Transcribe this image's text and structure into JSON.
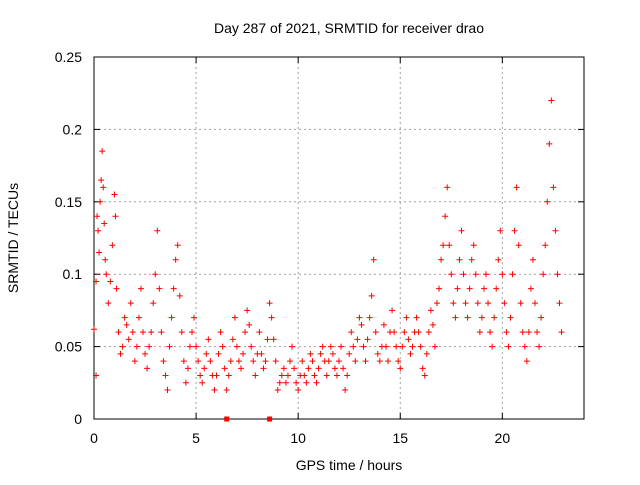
{
  "chart_data": {
    "type": "scatter",
    "title": "Day 287 of 2021, SRMTID for receiver drao",
    "xlabel": "GPS time / hours",
    "ylabel": "SRMTID / TECUs",
    "xlim": [
      0,
      24
    ],
    "ylim": [
      0,
      0.25
    ],
    "grid": true,
    "marker": "+",
    "color": "#ff0000",
    "x_ticks": [
      0,
      5,
      10,
      15,
      20
    ],
    "x_tick_labels": [
      "0",
      "5",
      "10",
      "15",
      "20"
    ],
    "y_ticks": [
      0,
      0.05,
      0.1,
      0.15,
      0.2,
      0.25
    ],
    "y_tick_labels": [
      "0",
      "0.05",
      "0.1",
      "0.15",
      "0.2",
      "0.25"
    ],
    "series": [
      {
        "name": "SRMTID",
        "points": [
          [
            0.0,
            0.062
          ],
          [
            0.1,
            0.03
          ],
          [
            0.1,
            0.095
          ],
          [
            0.15,
            0.14
          ],
          [
            0.2,
            0.13
          ],
          [
            0.25,
            0.115
          ],
          [
            0.3,
            0.15
          ],
          [
            0.35,
            0.165
          ],
          [
            0.4,
            0.185
          ],
          [
            0.45,
            0.16
          ],
          [
            0.5,
            0.135
          ],
          [
            0.55,
            0.11
          ],
          [
            0.6,
            0.1
          ],
          [
            0.7,
            0.08
          ],
          [
            0.8,
            0.095
          ],
          [
            0.9,
            0.12
          ],
          [
            1.0,
            0.155
          ],
          [
            1.05,
            0.14
          ],
          [
            1.1,
            0.09
          ],
          [
            1.2,
            0.06
          ],
          [
            1.3,
            0.045
          ],
          [
            1.4,
            0.05
          ],
          [
            1.5,
            0.07
          ],
          [
            1.6,
            0.065
          ],
          [
            1.7,
            0.055
          ],
          [
            1.8,
            0.08
          ],
          [
            1.9,
            0.06
          ],
          [
            2.0,
            0.04
          ],
          [
            2.1,
            0.05
          ],
          [
            2.2,
            0.07
          ],
          [
            2.3,
            0.09
          ],
          [
            2.4,
            0.06
          ],
          [
            2.5,
            0.045
          ],
          [
            2.6,
            0.035
          ],
          [
            2.7,
            0.05
          ],
          [
            2.8,
            0.06
          ],
          [
            2.9,
            0.08
          ],
          [
            3.0,
            0.1
          ],
          [
            3.1,
            0.13
          ],
          [
            3.2,
            0.09
          ],
          [
            3.3,
            0.06
          ],
          [
            3.4,
            0.04
          ],
          [
            3.5,
            0.03
          ],
          [
            3.6,
            0.02
          ],
          [
            3.7,
            0.05
          ],
          [
            3.8,
            0.07
          ],
          [
            3.9,
            0.09
          ],
          [
            4.0,
            0.11
          ],
          [
            4.1,
            0.12
          ],
          [
            4.2,
            0.085
          ],
          [
            4.3,
            0.06
          ],
          [
            4.4,
            0.04
          ],
          [
            4.5,
            0.025
          ],
          [
            4.6,
            0.035
          ],
          [
            4.7,
            0.05
          ],
          [
            4.8,
            0.06
          ],
          [
            4.9,
            0.07
          ],
          [
            5.0,
            0.05
          ],
          [
            5.1,
            0.04
          ],
          [
            5.2,
            0.03
          ],
          [
            5.3,
            0.025
          ],
          [
            5.4,
            0.035
          ],
          [
            5.5,
            0.045
          ],
          [
            5.6,
            0.055
          ],
          [
            5.7,
            0.04
          ],
          [
            5.8,
            0.03
          ],
          [
            5.9,
            0.02
          ],
          [
            6.0,
            0.03
          ],
          [
            6.1,
            0.045
          ],
          [
            6.2,
            0.06
          ],
          [
            6.3,
            0.05
          ],
          [
            6.4,
            0.035
          ],
          [
            6.5,
            0.02
          ],
          [
            6.6,
            0.03
          ],
          [
            6.7,
            0.04
          ],
          [
            6.8,
            0.055
          ],
          [
            6.9,
            0.07
          ],
          [
            7.0,
            0.05
          ],
          [
            7.1,
            0.04
          ],
          [
            7.2,
            0.035
          ],
          [
            7.3,
            0.045
          ],
          [
            7.4,
            0.06
          ],
          [
            7.5,
            0.075
          ],
          [
            7.6,
            0.065
          ],
          [
            7.7,
            0.05
          ],
          [
            7.8,
            0.04
          ],
          [
            7.9,
            0.03
          ],
          [
            8.0,
            0.045
          ],
          [
            8.1,
            0.06
          ],
          [
            8.2,
            0.045
          ],
          [
            8.3,
            0.035
          ],
          [
            8.4,
            0.04
          ],
          [
            8.5,
            0.055
          ],
          [
            8.6,
            0.08
          ],
          [
            8.7,
            0.07
          ],
          [
            8.8,
            0.055
          ],
          [
            8.9,
            0.04
          ],
          [
            9.0,
            0.02
          ],
          [
            9.1,
            0.025
          ],
          [
            9.2,
            0.03
          ],
          [
            9.3,
            0.035
          ],
          [
            9.4,
            0.025
          ],
          [
            9.5,
            0.03
          ],
          [
            9.6,
            0.04
          ],
          [
            9.7,
            0.05
          ],
          [
            9.8,
            0.035
          ],
          [
            9.9,
            0.025
          ],
          [
            10.0,
            0.02
          ],
          [
            10.1,
            0.03
          ],
          [
            10.2,
            0.04
          ],
          [
            10.3,
            0.03
          ],
          [
            10.4,
            0.025
          ],
          [
            10.5,
            0.035
          ],
          [
            10.6,
            0.045
          ],
          [
            10.7,
            0.04
          ],
          [
            10.8,
            0.03
          ],
          [
            10.9,
            0.025
          ],
          [
            11.0,
            0.035
          ],
          [
            11.1,
            0.045
          ],
          [
            11.2,
            0.05
          ],
          [
            11.3,
            0.04
          ],
          [
            11.4,
            0.03
          ],
          [
            11.5,
            0.04
          ],
          [
            11.6,
            0.05
          ],
          [
            11.7,
            0.045
          ],
          [
            11.8,
            0.035
          ],
          [
            11.9,
            0.03
          ],
          [
            12.0,
            0.04
          ],
          [
            12.1,
            0.05
          ],
          [
            12.2,
            0.035
          ],
          [
            12.3,
            0.02
          ],
          [
            12.4,
            0.03
          ],
          [
            12.5,
            0.045
          ],
          [
            12.6,
            0.06
          ],
          [
            12.7,
            0.05
          ],
          [
            12.8,
            0.04
          ],
          [
            12.9,
            0.055
          ],
          [
            13.0,
            0.07
          ],
          [
            13.1,
            0.065
          ],
          [
            13.2,
            0.05
          ],
          [
            13.3,
            0.04
          ],
          [
            13.4,
            0.055
          ],
          [
            13.5,
            0.07
          ],
          [
            13.6,
            0.085
          ],
          [
            13.7,
            0.11
          ],
          [
            13.8,
            0.06
          ],
          [
            13.9,
            0.045
          ],
          [
            14.0,
            0.04
          ],
          [
            14.1,
            0.05
          ],
          [
            14.2,
            0.065
          ],
          [
            14.3,
            0.05
          ],
          [
            14.4,
            0.04
          ],
          [
            14.5,
            0.06
          ],
          [
            14.6,
            0.075
          ],
          [
            14.7,
            0.06
          ],
          [
            14.8,
            0.05
          ],
          [
            14.9,
            0.04
          ],
          [
            15.0,
            0.035
          ],
          [
            15.1,
            0.05
          ],
          [
            15.2,
            0.06
          ],
          [
            15.3,
            0.07
          ],
          [
            15.4,
            0.055
          ],
          [
            15.5,
            0.045
          ],
          [
            15.6,
            0.05
          ],
          [
            15.7,
            0.06
          ],
          [
            15.8,
            0.07
          ],
          [
            15.9,
            0.06
          ],
          [
            16.0,
            0.05
          ],
          [
            16.1,
            0.035
          ],
          [
            16.2,
            0.03
          ],
          [
            16.3,
            0.045
          ],
          [
            16.4,
            0.06
          ],
          [
            16.5,
            0.075
          ],
          [
            16.6,
            0.065
          ],
          [
            16.7,
            0.05
          ],
          [
            16.8,
            0.08
          ],
          [
            16.9,
            0.09
          ],
          [
            17.0,
            0.11
          ],
          [
            17.1,
            0.12
          ],
          [
            17.2,
            0.14
          ],
          [
            17.3,
            0.16
          ],
          [
            17.4,
            0.12
          ],
          [
            17.5,
            0.1
          ],
          [
            17.6,
            0.08
          ],
          [
            17.7,
            0.07
          ],
          [
            17.8,
            0.09
          ],
          [
            17.9,
            0.11
          ],
          [
            18.0,
            0.13
          ],
          [
            18.1,
            0.1
          ],
          [
            18.2,
            0.08
          ],
          [
            18.3,
            0.07
          ],
          [
            18.4,
            0.09
          ],
          [
            18.5,
            0.11
          ],
          [
            18.6,
            0.12
          ],
          [
            18.7,
            0.1
          ],
          [
            18.8,
            0.08
          ],
          [
            18.9,
            0.06
          ],
          [
            19.0,
            0.07
          ],
          [
            19.1,
            0.09
          ],
          [
            19.2,
            0.1
          ],
          [
            19.3,
            0.08
          ],
          [
            19.4,
            0.06
          ],
          [
            19.5,
            0.05
          ],
          [
            19.6,
            0.07
          ],
          [
            19.7,
            0.09
          ],
          [
            19.8,
            0.11
          ],
          [
            19.9,
            0.13
          ],
          [
            20.0,
            0.1
          ],
          [
            20.1,
            0.08
          ],
          [
            20.2,
            0.06
          ],
          [
            20.3,
            0.05
          ],
          [
            20.4,
            0.07
          ],
          [
            20.5,
            0.1
          ],
          [
            20.6,
            0.13
          ],
          [
            20.7,
            0.16
          ],
          [
            20.8,
            0.12
          ],
          [
            20.9,
            0.08
          ],
          [
            21.0,
            0.06
          ],
          [
            21.1,
            0.05
          ],
          [
            21.2,
            0.04
          ],
          [
            21.3,
            0.06
          ],
          [
            21.4,
            0.09
          ],
          [
            21.5,
            0.11
          ],
          [
            21.6,
            0.08
          ],
          [
            21.7,
            0.06
          ],
          [
            21.8,
            0.05
          ],
          [
            21.9,
            0.07
          ],
          [
            22.0,
            0.1
          ],
          [
            22.1,
            0.12
          ],
          [
            22.2,
            0.15
          ],
          [
            22.3,
            0.19
          ],
          [
            22.4,
            0.22
          ],
          [
            22.5,
            0.16
          ],
          [
            22.6,
            0.13
          ],
          [
            22.7,
            0.1
          ],
          [
            22.8,
            0.08
          ],
          [
            22.9,
            0.06
          ]
        ]
      }
    ],
    "ground_markers": [
      6.5,
      8.6
    ]
  }
}
